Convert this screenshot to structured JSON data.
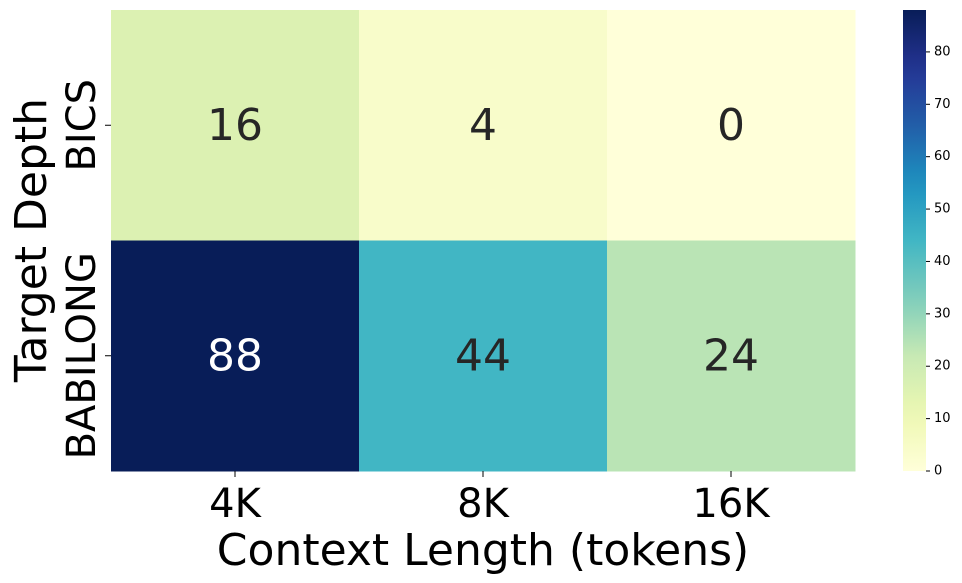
{
  "chart_data": {
    "type": "heatmap",
    "title": "",
    "xlabel": "Context Length (tokens)",
    "ylabel": "Target Depth",
    "x_categories": [
      "4K",
      "8K",
      "16K"
    ],
    "y_categories": [
      "BICS",
      "BABILONG"
    ],
    "values": [
      [
        16,
        4,
        0
      ],
      [
        88,
        44,
        24
      ]
    ],
    "colormap": "YlGnBu",
    "colorbar": {
      "range": [
        0,
        88
      ],
      "ticks": [
        0,
        10,
        20,
        30,
        40,
        50,
        60,
        70,
        80
      ]
    },
    "annotations": true,
    "grid": false,
    "legend": "colorbar-right"
  }
}
